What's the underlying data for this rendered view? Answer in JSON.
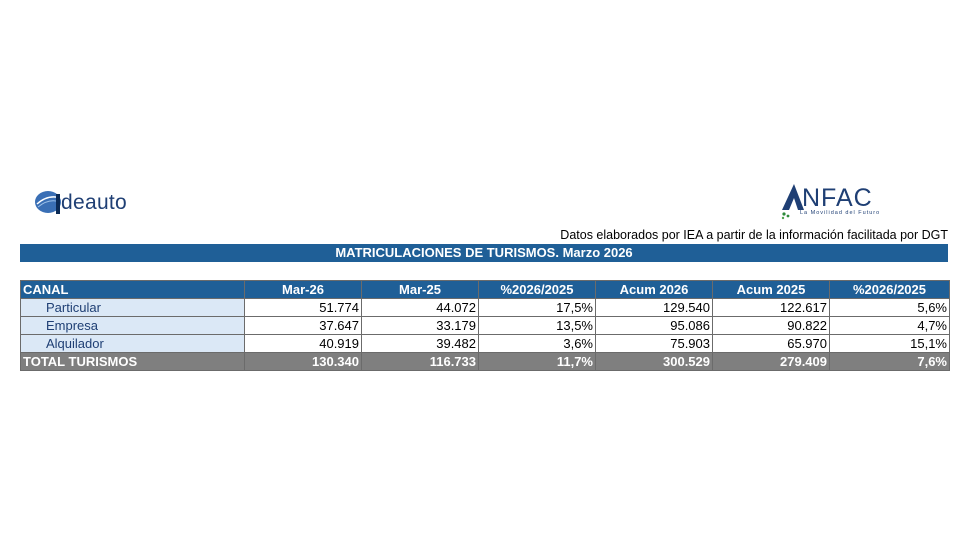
{
  "logos": {
    "left": {
      "text": "deauto",
      "icon": "ideauto-logo-icon"
    },
    "right": {
      "text": "NFAC",
      "tagline": "La Movilidad del Futuro",
      "icon": "anfac-logo-icon"
    }
  },
  "source_note": "Datos elaborados por IEA a partir de la información facilitada por DGT",
  "title": "MATRICULACIONES DE TURISMOS. Marzo 2026",
  "colors": {
    "header_blue": "#1f5f97",
    "label_bg": "#dbe8f6",
    "total_grey": "#7f7f7f"
  },
  "table": {
    "headers": [
      "CANAL",
      "Mar-26",
      "Mar-25",
      "%2026/2025",
      "Acum 2026",
      "Acum 2025",
      "%2026/2025"
    ],
    "rows": [
      [
        "Particular",
        "51.774",
        "44.072",
        "17,5%",
        "129.540",
        "122.617",
        "5,6%"
      ],
      [
        "Empresa",
        "37.647",
        "33.179",
        "13,5%",
        "95.086",
        "90.822",
        "4,7%"
      ],
      [
        "Alquilador",
        "40.919",
        "39.482",
        "3,6%",
        "75.903",
        "65.970",
        "15,1%"
      ]
    ],
    "total": [
      "TOTAL TURISMOS",
      "130.340",
      "116.733",
      "11,7%",
      "300.529",
      "279.409",
      "7,6%"
    ]
  }
}
